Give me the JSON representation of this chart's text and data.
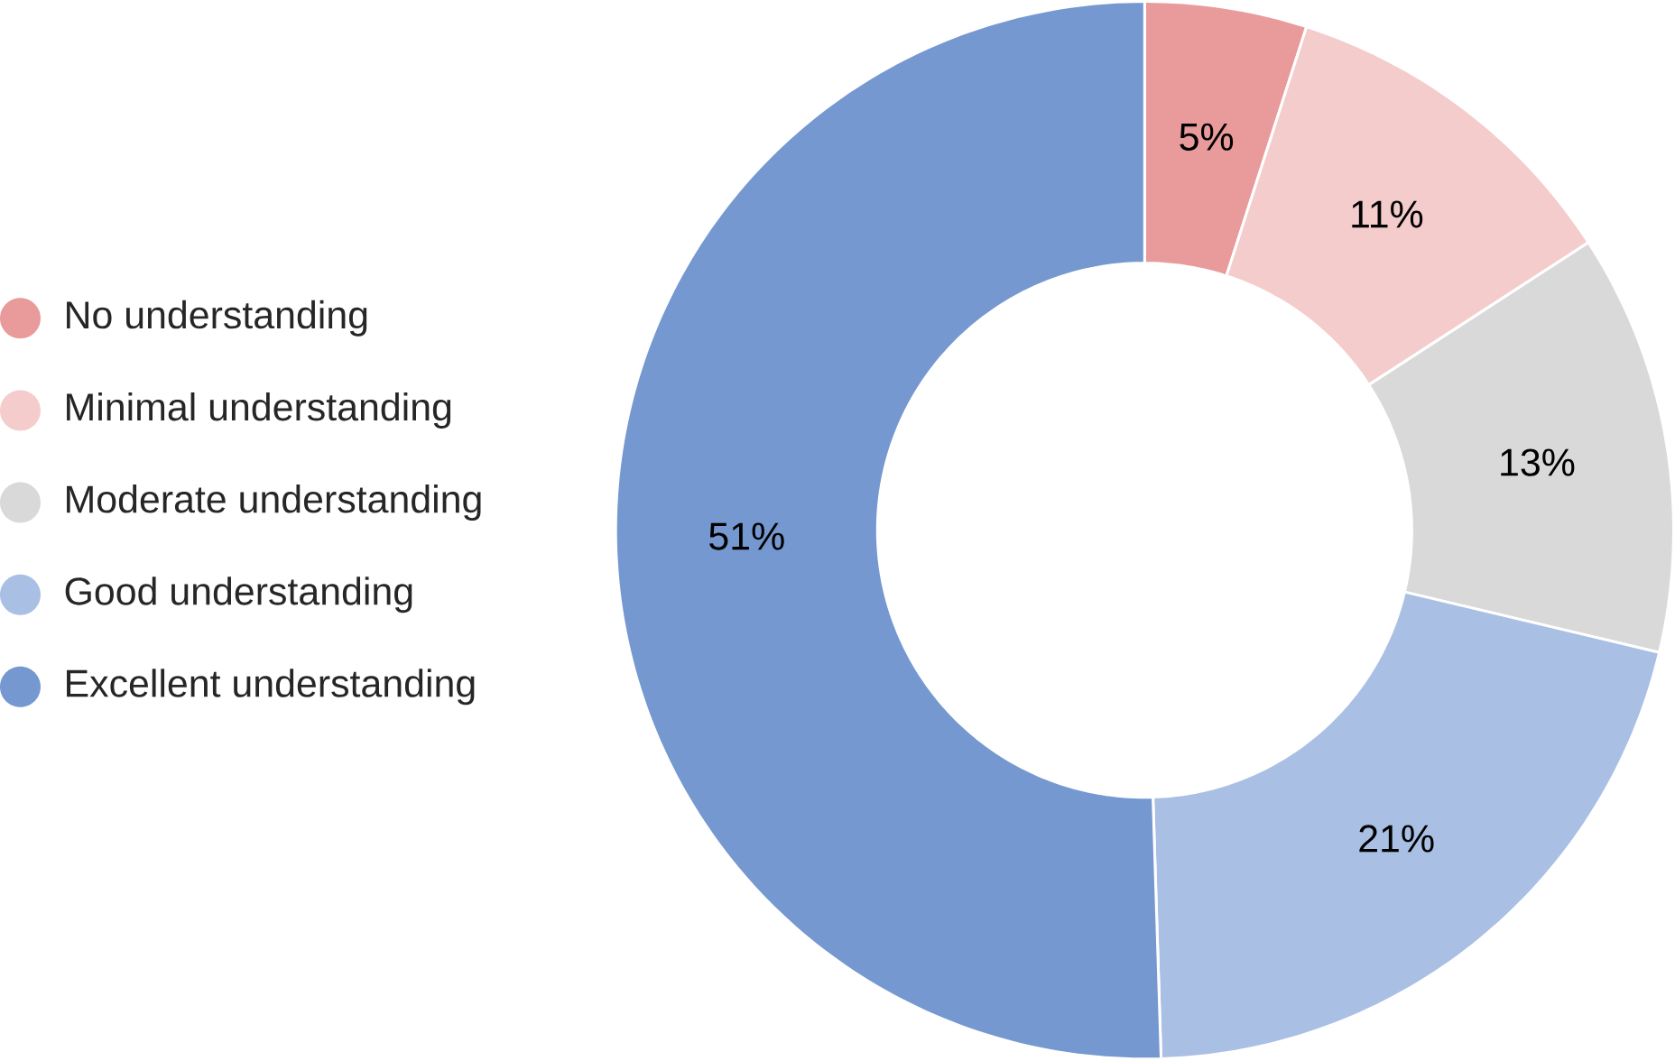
{
  "chart_data": {
    "type": "donut",
    "categories": [
      "No understanding",
      "Minimal understanding",
      "Moderate understanding",
      "Good understanding",
      "Excellent understanding"
    ],
    "values": [
      5,
      11,
      13,
      21,
      51
    ],
    "value_labels": [
      "5%",
      "11%",
      "13%",
      "21%",
      "51%"
    ],
    "colors": [
      "#e99a9a",
      "#f4cccc",
      "#d9d9d9",
      "#a9bfe4",
      "#7598d0"
    ],
    "legend": "left"
  }
}
